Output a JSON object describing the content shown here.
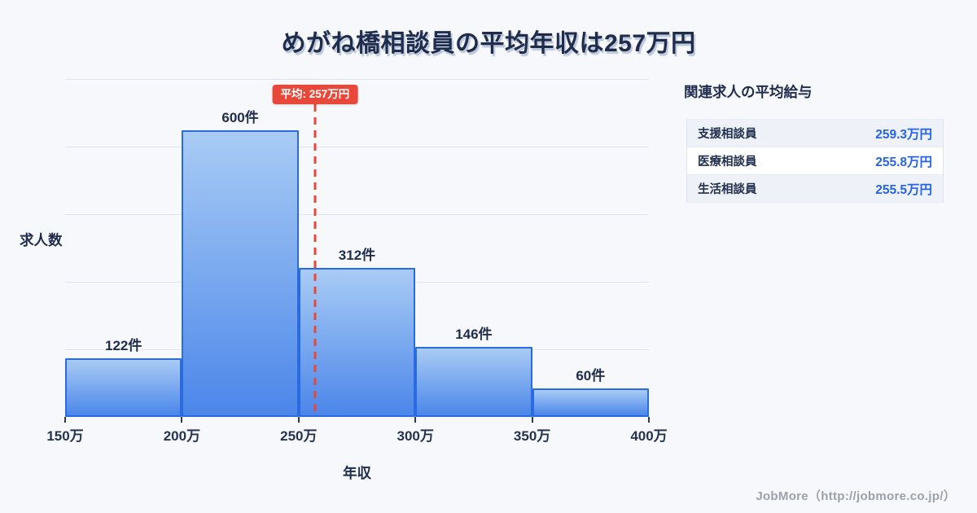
{
  "page": {
    "title": "めがね橋相談員の平均年収は257万円",
    "footer": "JobMore（http://jobmore.co.jp/）"
  },
  "chart_data": {
    "type": "bar",
    "title": "めがね橋相談員の平均年収は257万円",
    "xlabel": "年収",
    "ylabel": "求人数",
    "bin_edges_man_yen": [
      150,
      200,
      250,
      300,
      350,
      400
    ],
    "x_tick_labels": [
      "150万",
      "200万",
      "250万",
      "300万",
      "350万",
      "400万"
    ],
    "values": [
      122,
      600,
      312,
      146,
      60
    ],
    "bar_labels": [
      "122件",
      "600件",
      "312件",
      "146件",
      "60件"
    ],
    "average": {
      "value_man_yen": 257,
      "label": "平均: 257万円"
    },
    "xlim": [
      150,
      400
    ],
    "ylim": [
      0,
      707
    ],
    "grid": "horizontal",
    "grid_divisions": 5,
    "legend": "none",
    "colors": {
      "bar_fill_top": "#a9ccf5",
      "bar_fill_bottom": "#4b86e9",
      "bar_border": "#2a6ae2",
      "average_red": "#e8483a",
      "value_blue": "#2563eb",
      "title_navy": "#1f2c4d"
    }
  },
  "related_panel": {
    "title": "関連求人の平均給与",
    "rows": [
      {
        "label": "支援相談員",
        "value": "259.3万円"
      },
      {
        "label": "医療相談員",
        "value": "255.8万円"
      },
      {
        "label": "生活相談員",
        "value": "255.5万円"
      }
    ]
  }
}
